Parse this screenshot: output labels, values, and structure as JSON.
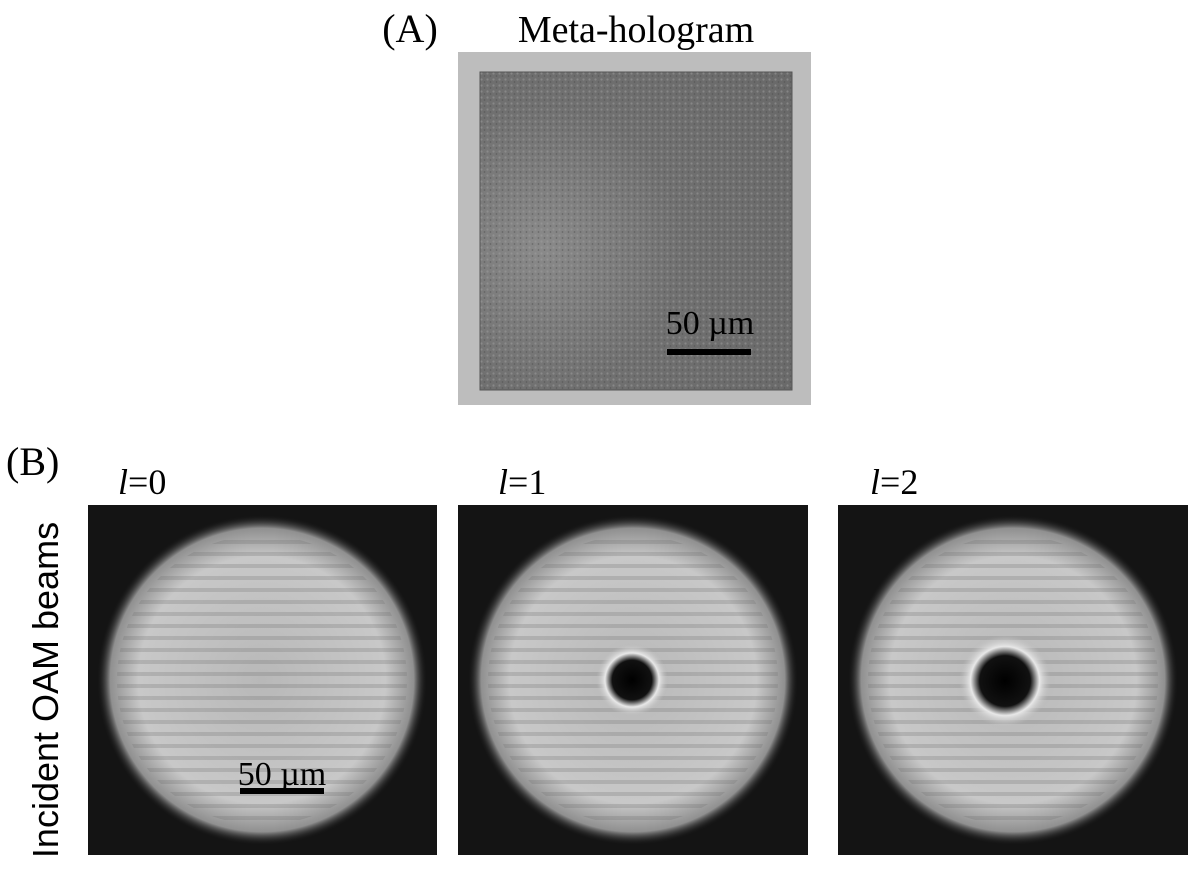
{
  "panel_a": {
    "label": "(A)",
    "title": "Meta-hologram",
    "scale_bar": "50 µm"
  },
  "panel_b": {
    "label": "(B)",
    "row_label": "Incident OAM beams",
    "scale_bar": "50 µm",
    "beams": [
      {
        "symbol": "l",
        "equals": "=0"
      },
      {
        "symbol": "l",
        "equals": "=1"
      },
      {
        "symbol": "l",
        "equals": "=2"
      }
    ]
  }
}
